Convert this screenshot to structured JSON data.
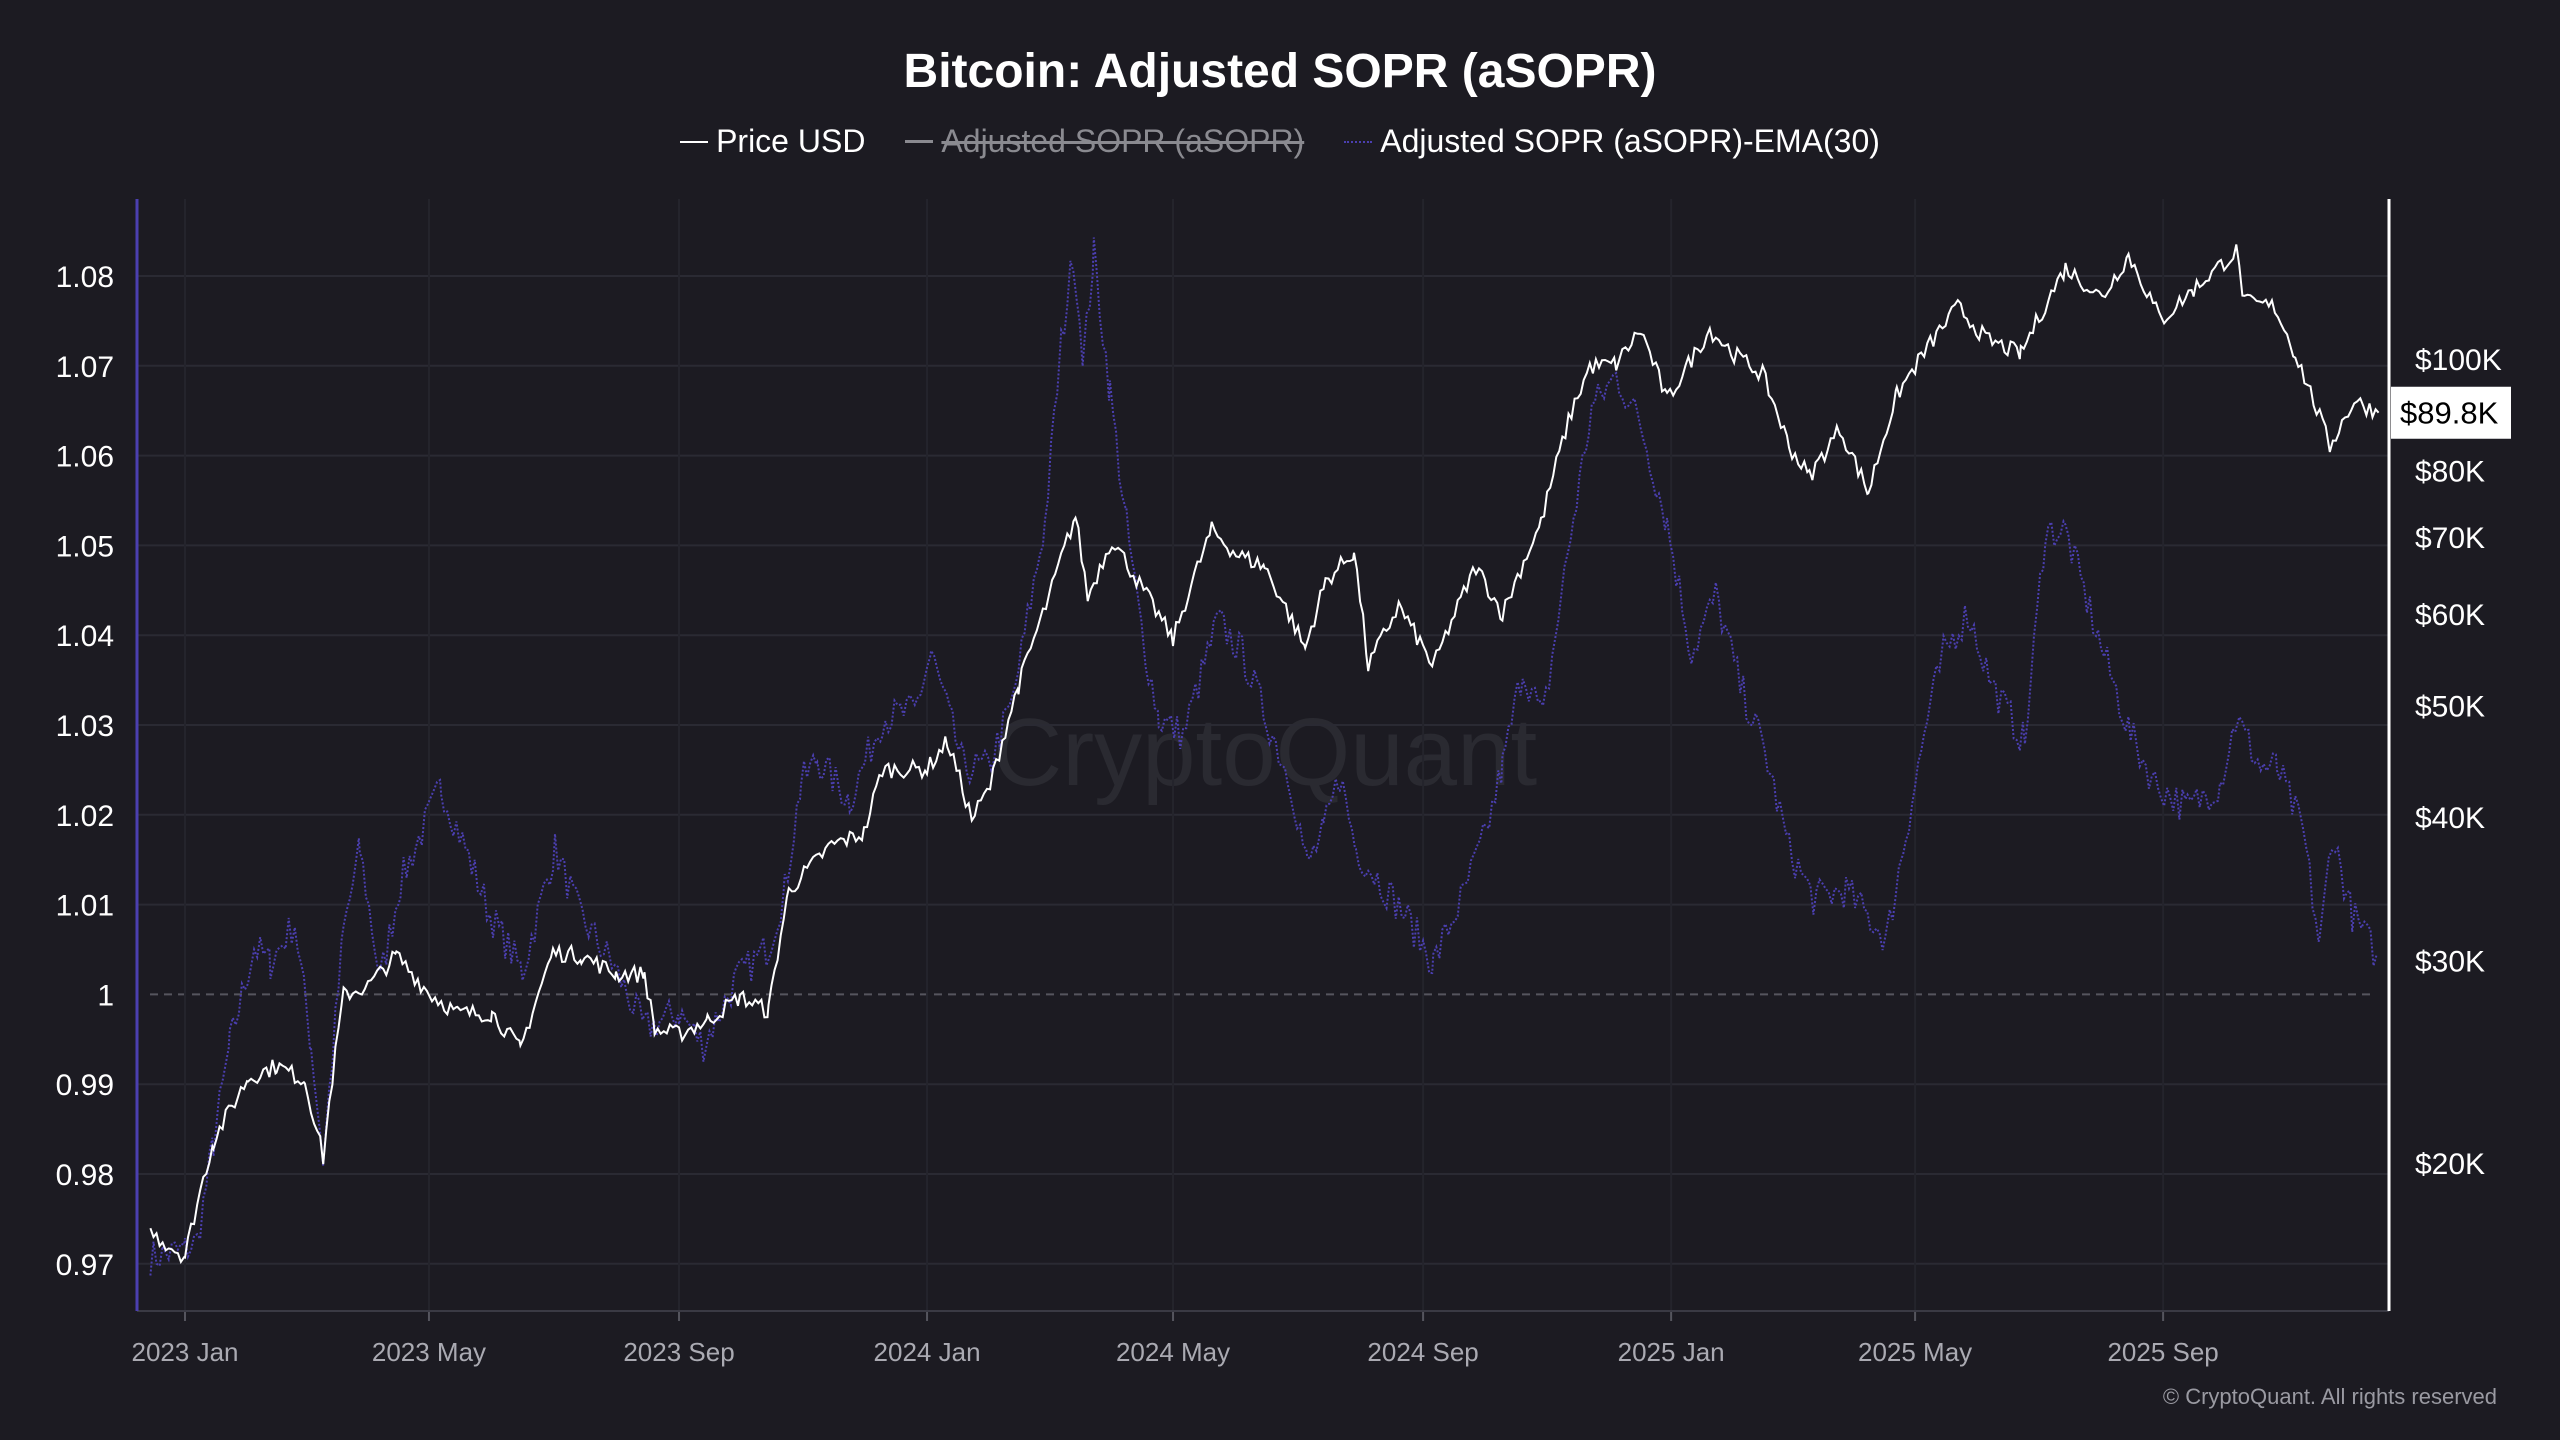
{
  "chart_data": {
    "type": "line",
    "title": "Bitcoin: Adjusted SOPR (aSOPR)",
    "x_unit": "days since 2023-01-01",
    "x_ticks": [
      {
        "label": "2023 Jan",
        "day": 0
      },
      {
        "label": "2023 May",
        "day": 120
      },
      {
        "label": "2023 Sep",
        "day": 243
      },
      {
        "label": "2024 Jan",
        "day": 365
      },
      {
        "label": "2024 May",
        "day": 486
      },
      {
        "label": "2024 Sep",
        "day": 609
      },
      {
        "label": "2025 Jan",
        "day": 731
      },
      {
        "label": "2025 May",
        "day": 851
      },
      {
        "label": "2025 Sep",
        "day": 973
      }
    ],
    "xlim": [
      -17,
      1079
    ],
    "left_axis": {
      "ylim": [
        0.965,
        1.0875
      ],
      "ticks": [
        0.97,
        0.98,
        0.99,
        1,
        1.01,
        1.02,
        1.03,
        1.04,
        1.05,
        1.06,
        1.07,
        1.08
      ],
      "tick_labels": [
        "0.97",
        "0.98",
        "0.99",
        "1",
        "1.01",
        "1.02",
        "1.03",
        "1.04",
        "1.05",
        "1.06",
        "1.07",
        "1.08"
      ],
      "reference_line": 1
    },
    "right_axis": {
      "scale": "log",
      "unit": "USD thousands",
      "ticks": [
        20,
        30,
        40,
        50,
        60,
        70,
        80,
        100
      ],
      "tick_labels": [
        "$20K",
        "$30K",
        "$40K",
        "$50K",
        "$60K",
        "$70K",
        "$80K",
        "$100K"
      ],
      "current_label": "$89.8K",
      "current_value": 89.8
    },
    "legend": [
      {
        "name": "Price USD",
        "color": "#ffffff",
        "hidden": false
      },
      {
        "name": "Adjusted SOPR (aSOPR)",
        "color": "#8a8a90",
        "hidden": true
      },
      {
        "name": "Adjusted SOPR (aSOPR)-EMA(30)",
        "color": "#4b3fb0",
        "hidden": false
      }
    ],
    "series": [
      {
        "name": "Price USD",
        "axis": "right",
        "color": "#ffffff",
        "points": [
          [
            -17,
            17.4
          ],
          [
            0,
            16.6
          ],
          [
            14,
            20.9
          ],
          [
            31,
            23.7
          ],
          [
            45,
            24.3
          ],
          [
            59,
            23.6
          ],
          [
            68,
            20.2
          ],
          [
            78,
            28
          ],
          [
            90,
            28.5
          ],
          [
            104,
            30.3
          ],
          [
            120,
            28.1
          ],
          [
            134,
            27
          ],
          [
            151,
            27
          ],
          [
            165,
            25.1
          ],
          [
            181,
            30.5
          ],
          [
            195,
            30.3
          ],
          [
            212,
            29.2
          ],
          [
            226,
            29.2
          ],
          [
            231,
            26.1
          ],
          [
            243,
            25.9
          ],
          [
            257,
            26.6
          ],
          [
            273,
            27.9
          ],
          [
            287,
            27.1
          ],
          [
            297,
            34.5
          ],
          [
            318,
            37.8
          ],
          [
            334,
            38.7
          ],
          [
            343,
            44
          ],
          [
            365,
            44
          ],
          [
            375,
            46.5
          ],
          [
            387,
            39.8
          ],
          [
            396,
            42.5
          ],
          [
            410,
            52
          ],
          [
            425,
            62
          ],
          [
            438,
            73
          ],
          [
            444,
            62
          ],
          [
            456,
            69.7
          ],
          [
            470,
            63.5
          ],
          [
            486,
            57
          ],
          [
            505,
            71
          ],
          [
            517,
            67.7
          ],
          [
            531,
            66
          ],
          [
            551,
            56
          ],
          [
            561,
            64
          ],
          [
            575,
            68
          ],
          [
            582,
            54
          ],
          [
            597,
            61
          ],
          [
            614,
            54
          ],
          [
            635,
            66
          ],
          [
            648,
            60
          ],
          [
            667,
            72
          ],
          [
            682,
            90
          ],
          [
            691,
            98.5
          ],
          [
            704,
            99
          ],
          [
            716,
            106
          ],
          [
            729,
            92
          ],
          [
            750,
            106
          ],
          [
            762,
            101
          ],
          [
            776,
            97
          ],
          [
            789,
            84
          ],
          [
            799,
            79
          ],
          [
            814,
            87
          ],
          [
            828,
            76.5
          ],
          [
            842,
            93
          ],
          [
            860,
            104
          ],
          [
            872,
            111
          ],
          [
            886,
            104
          ],
          [
            903,
            101
          ],
          [
            925,
            120
          ],
          [
            943,
            113
          ],
          [
            956,
            123
          ],
          [
            972,
            108
          ],
          [
            988,
            115
          ],
          [
            1009,
            124
          ],
          [
            1013,
            112
          ],
          [
            1028,
            111
          ],
          [
            1038,
            101
          ],
          [
            1055,
            84
          ],
          [
            1067,
            92
          ],
          [
            1079,
            89.8
          ]
        ]
      },
      {
        "name": "Adjusted SOPR (aSOPR)-EMA(30)",
        "axis": "left",
        "color": "#4b3fb0",
        "points": [
          [
            -17,
            0.9707
          ],
          [
            0,
            0.9716
          ],
          [
            6,
            0.9725
          ],
          [
            14,
            0.9835
          ],
          [
            22,
            0.9944
          ],
          [
            34,
            1.0053
          ],
          [
            42,
            1.0035
          ],
          [
            54,
            1.008
          ],
          [
            62,
            0.9944
          ],
          [
            68,
            0.9816
          ],
          [
            78,
            1.0071
          ],
          [
            86,
            1.0162
          ],
          [
            96,
            1.0016
          ],
          [
            106,
            1.0125
          ],
          [
            126,
            1.0231
          ],
          [
            138,
            1.0162
          ],
          [
            150,
            1.0089
          ],
          [
            166,
            1.0025
          ],
          [
            182,
            1.0162
          ],
          [
            194,
            1.0089
          ],
          [
            210,
            1.0035
          ],
          [
            226,
            0.9962
          ],
          [
            243,
            0.998
          ],
          [
            255,
            0.9944
          ],
          [
            271,
            1.0016
          ],
          [
            287,
            1.0053
          ],
          [
            295,
            1.0116
          ],
          [
            303,
            1.0235
          ],
          [
            311,
            1.0262
          ],
          [
            327,
            1.0216
          ],
          [
            343,
            1.0307
          ],
          [
            359,
            1.0316
          ],
          [
            367,
            1.038
          ],
          [
            383,
            1.0253
          ],
          [
            395,
            1.0253
          ],
          [
            407,
            1.0325
          ],
          [
            423,
            1.0525
          ],
          [
            431,
            1.0725
          ],
          [
            437,
            1.0825
          ],
          [
            442,
            1.0707
          ],
          [
            447,
            1.0825
          ],
          [
            455,
            1.0671
          ],
          [
            463,
            1.0525
          ],
          [
            471,
            1.0398
          ],
          [
            479,
            1.0307
          ],
          [
            491,
            1.0289
          ],
          [
            508,
            1.0416
          ],
          [
            520,
            1.038
          ],
          [
            532,
            1.0307
          ],
          [
            544,
            1.0235
          ],
          [
            552,
            1.0144
          ],
          [
            560,
            1.018
          ],
          [
            568,
            1.0244
          ],
          [
            576,
            1.0162
          ],
          [
            588,
            1.0125
          ],
          [
            600,
            1.0089
          ],
          [
            614,
            1.0035
          ],
          [
            628,
            1.0107
          ],
          [
            640,
            1.018
          ],
          [
            648,
            1.0253
          ],
          [
            658,
            1.0362
          ],
          [
            668,
            1.0307
          ],
          [
            680,
            1.0489
          ],
          [
            692,
            1.0653
          ],
          [
            704,
            1.0689
          ],
          [
            716,
            1.0635
          ],
          [
            729,
            1.0525
          ],
          [
            741,
            1.038
          ],
          [
            753,
            1.0444
          ],
          [
            765,
            1.0344
          ],
          [
            777,
            1.0271
          ],
          [
            789,
            1.0162
          ],
          [
            801,
            1.0107
          ],
          [
            817,
            1.0116
          ],
          [
            837,
            1.0062
          ],
          [
            845,
            1.0162
          ],
          [
            857,
            1.0307
          ],
          [
            865,
            1.038
          ],
          [
            877,
            1.0425
          ],
          [
            889,
            1.0344
          ],
          [
            905,
            1.028
          ],
          [
            915,
            1.0516
          ],
          [
            925,
            1.0516
          ],
          [
            941,
            1.0398
          ],
          [
            957,
            1.0289
          ],
          [
            969,
            1.0235
          ],
          [
            985,
            1.0207
          ],
          [
            1001,
            1.0235
          ],
          [
            1009,
            1.0307
          ],
          [
            1021,
            1.0253
          ],
          [
            1029,
            1.0253
          ],
          [
            1042,
            1.018
          ],
          [
            1050,
            1.0053
          ],
          [
            1056,
            1.018
          ],
          [
            1066,
            1.0089
          ],
          [
            1078,
            1.0044
          ]
        ]
      }
    ],
    "watermark": "CryptoQuant"
  },
  "copyright": "© CryptoQuant. All rights reserved"
}
